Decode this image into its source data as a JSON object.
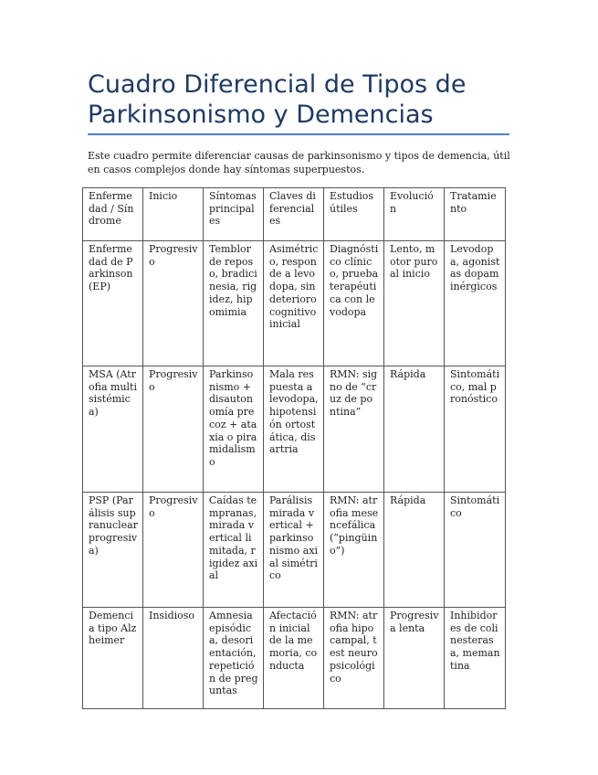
{
  "document": {
    "title": "Cuadro Diferencial de Tipos de Parkinsonismo y Demencias",
    "intro": "Este cuadro permite diferenciar causas de parkinsonismo y tipos de demencia, útil en casos complejos donde hay síntomas superpuestos.",
    "accent_color": "#4f81bd",
    "title_color": "#1f3a60"
  },
  "table": {
    "headers": [
      "Enfermedad / Síndrome",
      "Inicio",
      "Síntomas principales",
      "Claves diferenciales",
      "Estudios útiles",
      "Evolución",
      "Tratamiento"
    ],
    "rows": [
      [
        "Enfermedad de Parkinson (EP)",
        "Progresivo",
        "Temblor de reposo, bradicinesia, rigidez, hipomimia",
        "Asimétrico, responde a levodopa, sin deterioro cognitivo inicial",
        "Diagnóstico clínico, prueba terapéutica con levodopa",
        "Lento, motor puro al inicio",
        "Levodopa, agonistas dopaminérgicos"
      ],
      [
        "MSA (Atrofia multisistémica)",
        "Progresivo",
        "Parkinsonismo + disautonomía precoz + ataxia o piramidalismo",
        "Mala respuesta a levodopa, hipotensión ortostática, disartria",
        "RMN: signo de “cruz de pontina”",
        "Rápida",
        "Sintomático, mal pronóstico"
      ],
      [
        "PSP (Parálisis supranuclear progresiva)",
        "Progresivo",
        "Caídas tempranas, mirada vertical limitada, rigidez axial",
        "Parálisis mirada vertical + parkinsonismo axial simétrico",
        "RMN: atrofia mesencefálica (“pingüino”)",
        "Rápida",
        "Sintomático"
      ],
      [
        "Demencia tipo Alzheimer",
        "Insidioso",
        "Amnesia episódica, desorientación, repetición de preguntas",
        "Afectación inicial de la memoria, conducta",
        "RMN: atrofia hipocampal, test neuropsicológico",
        "Progresiva lenta",
        "Inhibidores de colinesterasa, memantina"
      ]
    ]
  }
}
